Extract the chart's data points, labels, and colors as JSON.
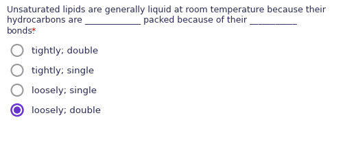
{
  "background_color": "#ffffff",
  "question_lines": [
    "Unsaturated lipids are generally liquid at room temperature because their",
    "hydrocarbons are _____________ packed because of their ___________",
    "bonds."
  ],
  "asterisk": "*",
  "asterisk_color": "#cc0000",
  "text_color": "#2c2c54",
  "options": [
    "tightly; double",
    "tightly; single",
    "loosely; single",
    "loosely; double"
  ],
  "selected_index": 3,
  "font_size_question": 9.0,
  "font_size_option": 9.5,
  "unselected_circle_color": "#999999",
  "selected_outer_color": "#6633cc",
  "selected_inner_color": "#6633cc",
  "fig_width": 5.0,
  "fig_height": 2.3,
  "dpi": 100
}
